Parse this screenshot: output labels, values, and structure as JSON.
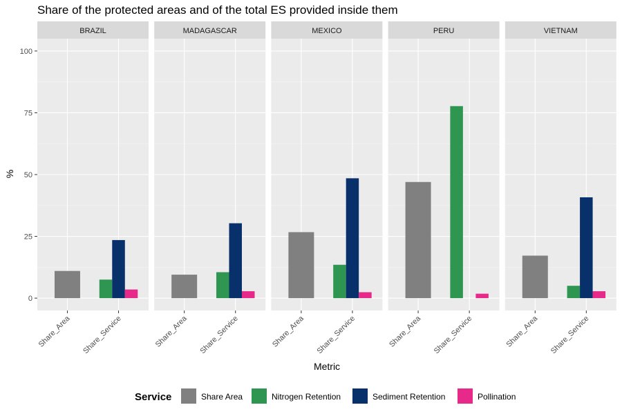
{
  "chart_data": {
    "type": "bar",
    "title": "Share of the protected areas and of the total ES provided inside them",
    "xlabel": "Metric",
    "ylabel": "%",
    "ylim": [
      -5,
      105
    ],
    "yticks": [
      0,
      25,
      50,
      75,
      100
    ],
    "categories": [
      "Share_Area",
      "Share_Service"
    ],
    "grid": true,
    "legend": {
      "title": "Service",
      "position": "bottom",
      "entries": [
        {
          "name": "Share Area",
          "color": "#808080"
        },
        {
          "name": "Nitrogen Retention",
          "color": "#2e9651"
        },
        {
          "name": "Sediment Retention",
          "color": "#08306b"
        },
        {
          "name": "Pollination",
          "color": "#e7298a"
        }
      ]
    },
    "facets": [
      {
        "name": "BRAZIL",
        "share_area": 11,
        "nitrogen": 7.5,
        "sediment": 23.5,
        "pollination": 3.5
      },
      {
        "name": "MADAGASCAR",
        "share_area": 9.5,
        "nitrogen": 10.5,
        "sediment": 30.3,
        "pollination": 2.8
      },
      {
        "name": "MEXICO",
        "share_area": 26.7,
        "nitrogen": 13.5,
        "sediment": 48.5,
        "pollination": 2.4
      },
      {
        "name": "PERU",
        "share_area": 47,
        "nitrogen": 77.7,
        "sediment": null,
        "pollination": 1.8
      },
      {
        "name": "VIETNAM",
        "share_area": 17.2,
        "nitrogen": 5,
        "sediment": 40.8,
        "pollination": 2.8
      }
    ]
  }
}
